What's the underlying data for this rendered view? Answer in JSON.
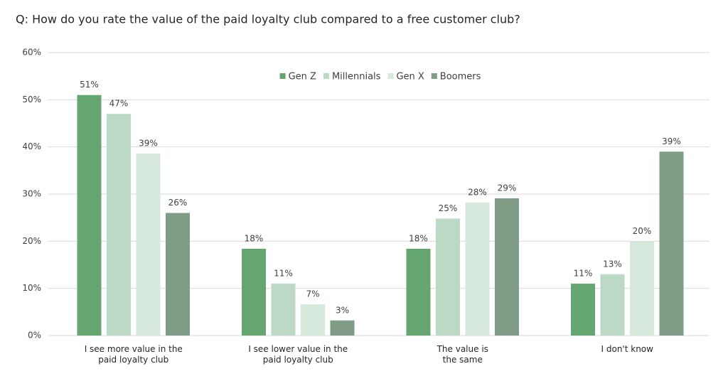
{
  "chart_data": {
    "type": "bar",
    "title": "Q: How do you rate the value of the paid loyalty club compared to a free customer club?",
    "categories": [
      "I see more value in the\npaid loyalty club",
      "I see lower value in the\npaid loyalty club",
      "The value is\nthe same",
      "I don't know"
    ],
    "series": [
      {
        "name": "Gen Z",
        "color": "#65a572",
        "values": [
          51,
          18.4,
          18.4,
          11
        ],
        "value_labels": [
          "51%",
          "18%",
          "18%",
          "11%"
        ]
      },
      {
        "name": "Millennials",
        "color": "#bcd9c5",
        "values": [
          47,
          11,
          24.8,
          13
        ],
        "value_labels": [
          "47%",
          "11%",
          "25%",
          "13%"
        ]
      },
      {
        "name": "Gen X",
        "color": "#d6e7dc",
        "values": [
          38.6,
          6.6,
          28.2,
          20
        ],
        "value_labels": [
          "39%",
          "7%",
          "28%",
          "20%"
        ]
      },
      {
        "name": "Boomers",
        "color": "#7f9c87",
        "values": [
          26,
          3.2,
          29.1,
          39
        ],
        "value_labels": [
          "26%",
          "3%",
          "29%",
          "39%"
        ]
      }
    ],
    "ylim": [
      0,
      60
    ],
    "yticks": [
      {
        "value": 0,
        "label": "0%"
      },
      {
        "value": 10,
        "label": "10%"
      },
      {
        "value": 20,
        "label": "20%"
      },
      {
        "value": 30,
        "label": "30%"
      },
      {
        "value": 40,
        "label": "40%"
      },
      {
        "value": 50,
        "label": "50%"
      },
      {
        "value": 60,
        "label": "60%"
      }
    ],
    "grid": true,
    "legend": "top"
  }
}
